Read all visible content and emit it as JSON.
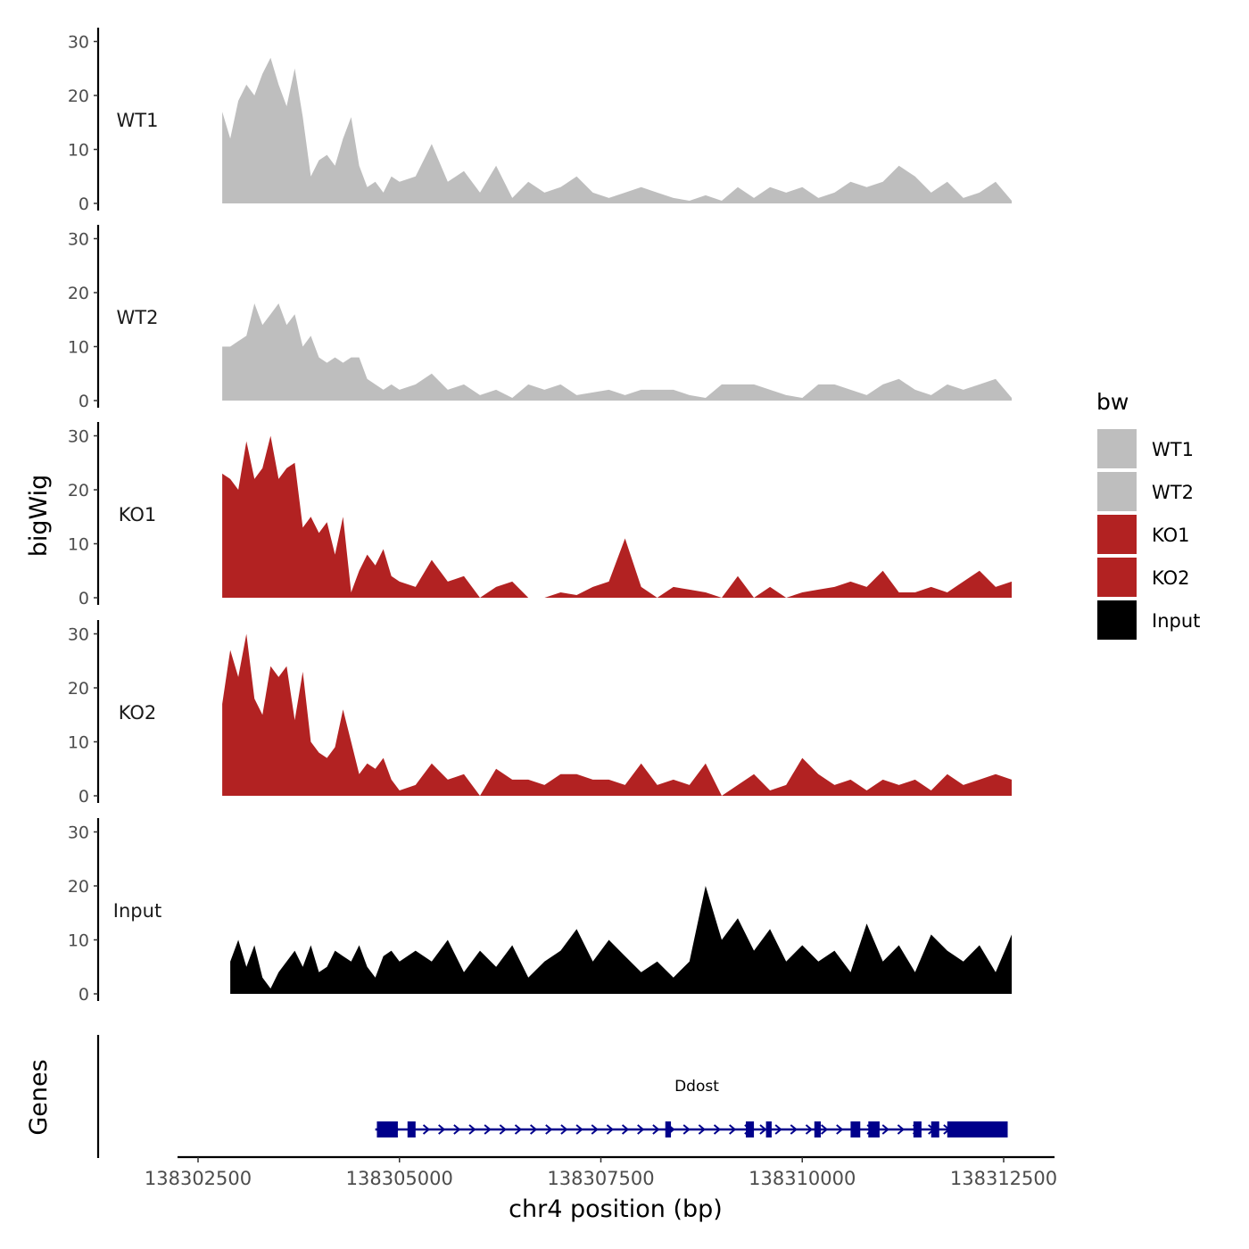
{
  "chart_data": {
    "type": "area",
    "ylabel": "bigWig",
    "genes_label": "Genes",
    "xlabel": "chr4 position (bp)",
    "x_ticks": [
      "138302500",
      "138305000",
      "138307500",
      "138310000",
      "138312500"
    ],
    "x_tick_values": [
      138302500,
      138305000,
      138307500,
      138310000,
      138312500
    ],
    "xlim": [
      138302000,
      138313000
    ],
    "ylim": [
      0,
      32
    ],
    "y_ticks": [
      "0",
      "10",
      "20",
      "30"
    ],
    "y_tick_values": [
      0,
      10,
      20,
      30
    ],
    "legend": {
      "title": "bw",
      "items": [
        {
          "label": "WT1",
          "color": "#bebebe"
        },
        {
          "label": "WT2",
          "color": "#bebebe"
        },
        {
          "label": "KO1",
          "color": "#b22222"
        },
        {
          "label": "KO2",
          "color": "#b22222"
        },
        {
          "label": "Input",
          "color": "#000000"
        }
      ]
    },
    "series": [
      {
        "name": "WT1",
        "color": "#bebebe",
        "x": [
          138302800,
          138302900,
          138303000,
          138303100,
          138303200,
          138303300,
          138303400,
          138303500,
          138303600,
          138303700,
          138303800,
          138303900,
          138304000,
          138304100,
          138304200,
          138304300,
          138304400,
          138304500,
          138304600,
          138304700,
          138304800,
          138304900,
          138305000,
          138305200,
          138305400,
          138305600,
          138305800,
          138306000,
          138306200,
          138306400,
          138306600,
          138306800,
          138307000,
          138307200,
          138307400,
          138307600,
          138307800,
          138308000,
          138308200,
          138308400,
          138308600,
          138308800,
          138309000,
          138309200,
          138309400,
          138309600,
          138309800,
          138310000,
          138310200,
          138310400,
          138310600,
          138310800,
          138311000,
          138311200,
          138311400,
          138311600,
          138311800,
          138312000,
          138312200,
          138312400,
          138312600
        ],
        "values": [
          17,
          12,
          19,
          22,
          20,
          24,
          27,
          22,
          18,
          25,
          16,
          5,
          8,
          9,
          7,
          12,
          16,
          7,
          3,
          4,
          2,
          5,
          4,
          5,
          11,
          4,
          6,
          2,
          7,
          1,
          4,
          2,
          3,
          5,
          2,
          1,
          2,
          3,
          2,
          1,
          0.5,
          1.5,
          0.5,
          3,
          1,
          3,
          2,
          3,
          1,
          2,
          4,
          3,
          4,
          7,
          5,
          2,
          4,
          1,
          2,
          4,
          0.5
        ]
      },
      {
        "name": "WT2",
        "color": "#bebebe",
        "x": [
          138302800,
          138302900,
          138303000,
          138303100,
          138303200,
          138303300,
          138303400,
          138303500,
          138303600,
          138303700,
          138303800,
          138303900,
          138304000,
          138304100,
          138304200,
          138304300,
          138304400,
          138304500,
          138304600,
          138304700,
          138304800,
          138304900,
          138305000,
          138305200,
          138305400,
          138305600,
          138305800,
          138306000,
          138306200,
          138306400,
          138306600,
          138306800,
          138307000,
          138307200,
          138307400,
          138307600,
          138307800,
          138308000,
          138308200,
          138308400,
          138308600,
          138308800,
          138309000,
          138309200,
          138309400,
          138309600,
          138309800,
          138310000,
          138310200,
          138310400,
          138310600,
          138310800,
          138311000,
          138311200,
          138311400,
          138311600,
          138311800,
          138312000,
          138312200,
          138312400,
          138312600
        ],
        "values": [
          10,
          10,
          11,
          12,
          18,
          14,
          16,
          18,
          14,
          16,
          10,
          12,
          8,
          7,
          8,
          7,
          8,
          8,
          4,
          3,
          2,
          3,
          2,
          3,
          5,
          2,
          3,
          1,
          2,
          0.5,
          3,
          2,
          3,
          1,
          1.5,
          2,
          1,
          2,
          2,
          2,
          1,
          0.5,
          3,
          3,
          3,
          2,
          1,
          0.5,
          3,
          3,
          2,
          1,
          3,
          4,
          2,
          1,
          3,
          2,
          3,
          4,
          0.5
        ]
      },
      {
        "name": "KO1",
        "color": "#b22222",
        "x": [
          138302800,
          138302900,
          138303000,
          138303100,
          138303200,
          138303300,
          138303400,
          138303500,
          138303600,
          138303700,
          138303800,
          138303900,
          138304000,
          138304100,
          138304200,
          138304300,
          138304400,
          138304500,
          138304600,
          138304700,
          138304800,
          138304900,
          138305000,
          138305200,
          138305400,
          138305600,
          138305800,
          138306000,
          138306200,
          138306400,
          138306600,
          138306800,
          138307000,
          138307200,
          138307400,
          138307600,
          138307800,
          138308000,
          138308200,
          138308400,
          138308600,
          138308800,
          138309000,
          138309200,
          138309400,
          138309600,
          138309800,
          138310000,
          138310200,
          138310400,
          138310600,
          138310800,
          138311000,
          138311200,
          138311400,
          138311600,
          138311800,
          138312000,
          138312200,
          138312400,
          138312600
        ],
        "values": [
          23,
          22,
          20,
          29,
          22,
          24,
          30,
          22,
          24,
          25,
          13,
          15,
          12,
          14,
          8,
          15,
          1,
          5,
          8,
          6,
          9,
          4,
          3,
          2,
          7,
          3,
          4,
          0,
          2,
          3,
          0,
          0,
          1,
          0.5,
          2,
          3,
          11,
          2,
          0,
          2,
          1.5,
          1,
          0,
          4,
          0,
          2,
          0,
          1,
          1.5,
          2,
          3,
          2,
          5,
          1,
          1,
          2,
          1,
          3,
          5,
          2,
          3
        ]
      },
      {
        "name": "KO2",
        "color": "#b22222",
        "x": [
          138302800,
          138302900,
          138303000,
          138303100,
          138303200,
          138303300,
          138303400,
          138303500,
          138303600,
          138303700,
          138303800,
          138303900,
          138304000,
          138304100,
          138304200,
          138304300,
          138304400,
          138304500,
          138304600,
          138304700,
          138304800,
          138304900,
          138305000,
          138305200,
          138305400,
          138305600,
          138305800,
          138306000,
          138306200,
          138306400,
          138306600,
          138306800,
          138307000,
          138307200,
          138307400,
          138307600,
          138307800,
          138308000,
          138308200,
          138308400,
          138308600,
          138308800,
          138309000,
          138309200,
          138309400,
          138309600,
          138309800,
          138310000,
          138310200,
          138310400,
          138310600,
          138310800,
          138311000,
          138311200,
          138311400,
          138311600,
          138311800,
          138312000,
          138312200,
          138312400,
          138312600
        ],
        "values": [
          17,
          27,
          22,
          30,
          18,
          15,
          24,
          22,
          24,
          14,
          23,
          10,
          8,
          7,
          9,
          16,
          10,
          4,
          6,
          5,
          7,
          3,
          1,
          2,
          6,
          3,
          4,
          0,
          5,
          3,
          3,
          2,
          4,
          4,
          3,
          3,
          2,
          6,
          2,
          3,
          2,
          6,
          0,
          2,
          4,
          1,
          2,
          7,
          4,
          2,
          3,
          1,
          3,
          2,
          3,
          1,
          4,
          2,
          3,
          4,
          3
        ]
      },
      {
        "name": "Input",
        "color": "#000000",
        "x": [
          138302900,
          138303000,
          138303100,
          138303200,
          138303300,
          138303400,
          138303500,
          138303600,
          138303700,
          138303800,
          138303900,
          138304000,
          138304100,
          138304200,
          138304300,
          138304400,
          138304500,
          138304600,
          138304700,
          138304800,
          138304900,
          138305000,
          138305200,
          138305400,
          138305600,
          138305800,
          138306000,
          138306200,
          138306400,
          138306600,
          138306800,
          138307000,
          138307200,
          138307400,
          138307600,
          138307800,
          138308000,
          138308200,
          138308400,
          138308600,
          138308800,
          138309000,
          138309200,
          138309400,
          138309600,
          138309800,
          138310000,
          138310200,
          138310400,
          138310600,
          138310800,
          138311000,
          138311200,
          138311400,
          138311600,
          138311800,
          138312000,
          138312200,
          138312400,
          138312600
        ],
        "values": [
          6,
          10,
          5,
          9,
          3,
          1,
          4,
          6,
          8,
          5,
          9,
          4,
          5,
          8,
          7,
          6,
          9,
          5,
          3,
          7,
          8,
          6,
          8,
          6,
          10,
          4,
          8,
          5,
          9,
          3,
          6,
          8,
          12,
          6,
          10,
          7,
          4,
          6,
          3,
          6,
          20,
          10,
          14,
          8,
          12,
          6,
          9,
          6,
          8,
          4,
          13,
          6,
          9,
          4,
          11,
          8,
          6,
          9,
          4,
          11
        ]
      }
    ],
    "gene": {
      "name": "Ddost",
      "start": 138304700,
      "end": 138312550,
      "color": "#00008b",
      "exons": [
        [
          138304720,
          138304980
        ],
        [
          138305100,
          138305200
        ],
        [
          138308300,
          138308370
        ],
        [
          138309300,
          138309400
        ],
        [
          138309550,
          138309620
        ],
        [
          138310150,
          138310230
        ],
        [
          138310600,
          138310720
        ],
        [
          138310820,
          138310960
        ],
        [
          138311380,
          138311480
        ],
        [
          138311600,
          138311700
        ],
        [
          138311800,
          138312550
        ]
      ]
    }
  }
}
